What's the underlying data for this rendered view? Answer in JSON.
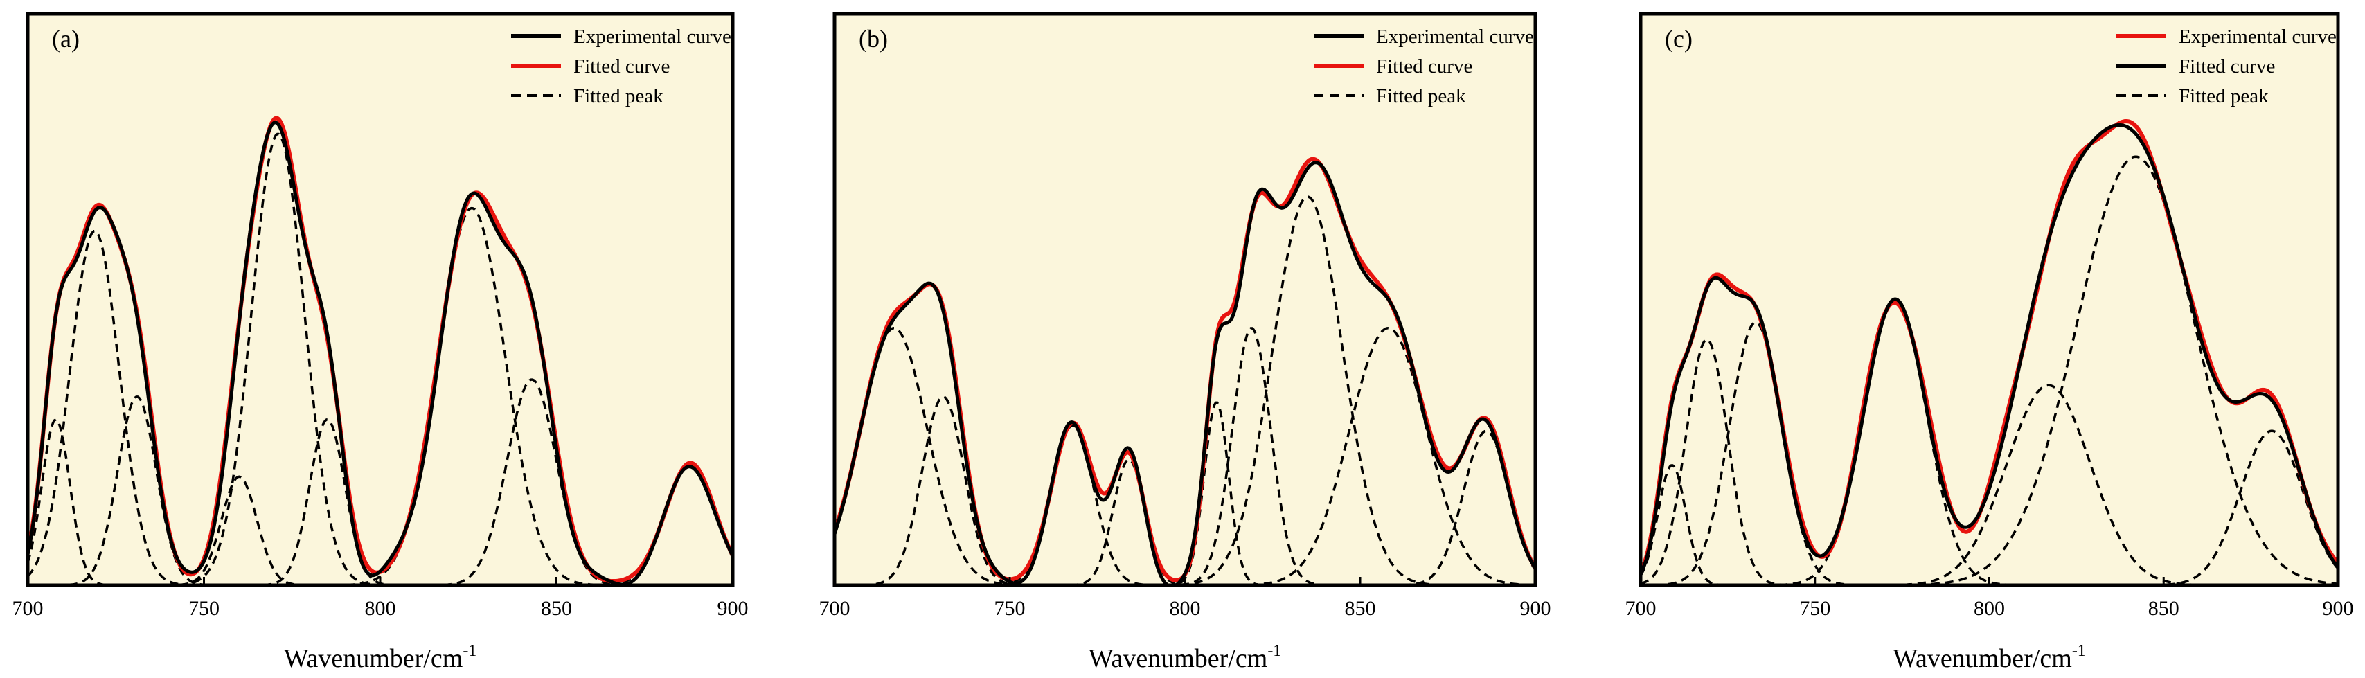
{
  "figure": {
    "colors": {
      "background": "#fbf6dc",
      "experimental": "#000000",
      "fitted": "#e8140f",
      "peak": "#000000",
      "axis": "#000000"
    }
  },
  "chart_data": [
    {
      "type": "line",
      "panel_label": "(a)",
      "xlabel_main": "Wavenumber/cm",
      "xlabel_sup": "-1",
      "ylabel": "",
      "xlim": [
        700,
        900
      ],
      "ylim": [
        0,
        1
      ],
      "xticks": [
        "700",
        "750",
        "800",
        "850",
        "900"
      ],
      "legend_position": "top-right",
      "legend": [
        {
          "label": "Experimental curve",
          "style": "solid",
          "color": "#000000"
        },
        {
          "label": "Fitted curve",
          "style": "solid",
          "color": "#e8140f"
        },
        {
          "label": "Fitted peak",
          "style": "dashed",
          "color": "#000000"
        }
      ],
      "peaks": [
        {
          "center": 708,
          "height": 0.29,
          "width": 4.0
        },
        {
          "center": 719,
          "height": 0.62,
          "width": 7.0
        },
        {
          "center": 731,
          "height": 0.33,
          "width": 5.5
        },
        {
          "center": 760,
          "height": 0.19,
          "width": 5.0
        },
        {
          "center": 771,
          "height": 0.79,
          "width": 7.5
        },
        {
          "center": 785,
          "height": 0.29,
          "width": 5.0
        },
        {
          "center": 826,
          "height": 0.66,
          "width": 9.5
        },
        {
          "center": 843,
          "height": 0.36,
          "width": 7.0
        },
        {
          "center": 888,
          "height": 0.21,
          "width": 7.0
        }
      ],
      "experimental_offset": 0.01,
      "fitted_offset": 0.0
    },
    {
      "type": "line",
      "panel_label": "(b)",
      "xlabel_main": "Wavenumber/cm",
      "xlabel_sup": "-1",
      "ylabel": "",
      "xlim": [
        700,
        900
      ],
      "ylim": [
        0,
        1
      ],
      "xticks": [
        "700",
        "750",
        "800",
        "850",
        "900"
      ],
      "legend_position": "top-right",
      "legend": [
        {
          "label": "Experimental curve",
          "style": "solid",
          "color": "#000000"
        },
        {
          "label": "Fitted curve",
          "style": "solid",
          "color": "#e8140f"
        },
        {
          "label": "Fitted peak",
          "style": "dashed",
          "color": "#000000"
        }
      ],
      "peaks": [
        {
          "center": 717,
          "height": 0.45,
          "width": 9.5
        },
        {
          "center": 731,
          "height": 0.33,
          "width": 6.0
        },
        {
          "center": 768,
          "height": 0.28,
          "width": 6.0
        },
        {
          "center": 784,
          "height": 0.22,
          "width": 4.5
        },
        {
          "center": 809,
          "height": 0.32,
          "width": 3.5
        },
        {
          "center": 819,
          "height": 0.45,
          "width": 5.5
        },
        {
          "center": 835,
          "height": 0.68,
          "width": 10.0
        },
        {
          "center": 858,
          "height": 0.45,
          "width": 11.0
        },
        {
          "center": 886,
          "height": 0.27,
          "width": 6.5
        }
      ],
      "experimental_offset": 0.005,
      "fitted_offset": 0.0
    },
    {
      "type": "line",
      "panel_label": "(c)",
      "xlabel_main": "Wavenumber/cm",
      "xlabel_sup": "-1",
      "ylabel": "",
      "xlim": [
        700,
        900
      ],
      "ylim": [
        0,
        1
      ],
      "xticks": [
        "700",
        "750",
        "800",
        "850",
        "900"
      ],
      "legend_position": "top-right",
      "legend": [
        {
          "label": "Experimental curve",
          "style": "solid",
          "color": "#e8140f"
        },
        {
          "label": "Fitted curve",
          "style": "solid",
          "color": "#000000"
        },
        {
          "label": "Fitted peak",
          "style": "dashed",
          "color": "#000000"
        }
      ],
      "peaks": [
        {
          "center": 709,
          "height": 0.21,
          "width": 4.0
        },
        {
          "center": 719,
          "height": 0.43,
          "width": 6.0
        },
        {
          "center": 733,
          "height": 0.46,
          "width": 7.5
        },
        {
          "center": 773,
          "height": 0.5,
          "width": 9.0
        },
        {
          "center": 817,
          "height": 0.35,
          "width": 12.0
        },
        {
          "center": 842,
          "height": 0.75,
          "width": 17.0
        },
        {
          "center": 881,
          "height": 0.27,
          "width": 9.0
        }
      ],
      "experimental_offset": -0.01,
      "fitted_offset": 0.0
    }
  ]
}
